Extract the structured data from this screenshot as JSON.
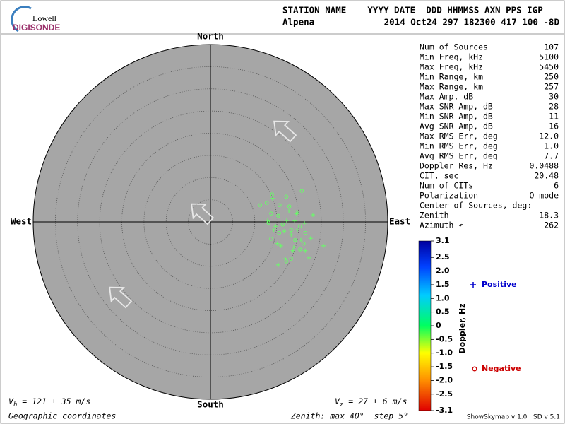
{
  "chart_data": {
    "type": "polar-scatter",
    "logo": {
      "top": "Lowell",
      "bottom": "DIGISONDE"
    },
    "header": {
      "labels": "STATION NAME    YYYY DATE  DDD HHMMSS AXN PPS IGP",
      "station": "Alpena",
      "values": "2014 Oct24 297 182300 417 100 -8D"
    },
    "compass": {
      "north": "North",
      "south": "South",
      "east": "East",
      "west": "West"
    },
    "xlim": [
      -40,
      40
    ],
    "ylim": [
      -40,
      40
    ],
    "rlim": [
      0,
      40
    ],
    "rticks": [
      5,
      10,
      15,
      20,
      25,
      30,
      35,
      40
    ],
    "series": [
      {
        "name": "Positive",
        "marker": "+",
        "color": "#66ff66",
        "legend_color": "#0000cc",
        "x": [
          14.0,
          17.7,
          23.1,
          12.9,
          14.7,
          16.6,
          19.0,
          21.2,
          15.1,
          18.8,
          20.4,
          22.6,
          25.5,
          16.9,
          15.3,
          22.2,
          19.4,
          17.2,
          18.2,
          19.6,
          15.9,
          14.3,
          18.6,
          21.4
        ],
        "values": [
          5.3,
          2.5,
          1.6,
          0.3,
          -1.0,
          -2.1,
          0.2,
          -0.3,
          -4.9,
          -5.7,
          -4.1,
          -3.7,
          -5.4,
          -8.3,
          -9.7,
          -8.1,
          1.8,
          0.3,
          -2.9,
          -1.8,
          -5.4,
          -1.8,
          -6.5,
          -6.5
        ]
      },
      {
        "name": "Negative",
        "marker": "o",
        "color": "#66ff66",
        "legend_color": "#cc0000",
        "x": [
          13.9,
          17.1,
          20.6,
          11.2,
          12.7,
          15.6,
          17.8,
          13.7,
          15.3,
          19.4,
          13.1,
          16.3,
          18.2,
          20.2,
          13.7,
          21.0,
          18.2,
          20.2,
          17.1,
          15.5,
          19.1,
          21.4
        ],
        "values": [
          6.2,
          5.7,
          7.0,
          3.8,
          4.3,
          3.8,
          3.5,
          1.9,
          1.4,
          2.2,
          -0.2,
          -0.6,
          -1.8,
          -1.0,
          -3.8,
          -4.9,
          -8.3,
          -6.2,
          -8.9,
          -2.5,
          -4.1,
          -2.5
        ]
      }
    ],
    "stats": [
      [
        "Num of Sources",
        "107"
      ],
      [
        "Min Freq, kHz",
        "5100"
      ],
      [
        "Max Freq, kHz",
        "5450"
      ],
      [
        "Min Range, km",
        "250"
      ],
      [
        "Max Range, km",
        "257"
      ],
      [
        "Max Amp, dB",
        "30"
      ],
      [
        "Max SNR Amp, dB",
        "28"
      ],
      [
        "Min SNR Amp, dB",
        "11"
      ],
      [
        "Avg SNR Amp, dB",
        "16"
      ],
      [
        "Max RMS Err, deg",
        "12.0"
      ],
      [
        "Min RMS Err, deg",
        "1.0"
      ],
      [
        "Avg RMS Err, deg",
        "7.7"
      ],
      [
        "Doppler Res, Hz",
        "0.0488"
      ],
      [
        "CIT, sec",
        "20.48"
      ],
      [
        "Num of CITs",
        "6"
      ],
      [
        "Polarization",
        "O-mode"
      ],
      [
        "Center of Sources, deg:",
        null
      ],
      [
        "      Zenith",
        "18.3"
      ],
      [
        "      Azimuth ↶",
        "262"
      ]
    ],
    "colorbar": {
      "label": "Doppler, Hz",
      "lim": [
        -3.1,
        3.1
      ],
      "ticks": [
        3.1,
        2.5,
        {
          "value": 2,
          "label": "2.0"
        },
        1.5,
        {
          "value": 1,
          "label": "1.0"
        },
        0.5,
        0,
        -0.5,
        {
          "value": -1,
          "label": "-1.0"
        },
        -1.5,
        {
          "value": -2,
          "label": "-2.0"
        },
        -2.5,
        -3.1
      ]
    },
    "footer": {
      "vh": {
        "symbol": "V",
        "subscript": "h",
        "text": " = 121 ± 35 m/s"
      },
      "vz": {
        "symbol": "V",
        "subscript": "z",
        "text": " = 27 ± 6 m/s"
      },
      "coords": "Geographic coordinates",
      "zenith": "Zenith: max 40°  step 5°",
      "version": "ShowSkymap v 1.0   SD v 5.1"
    }
  }
}
